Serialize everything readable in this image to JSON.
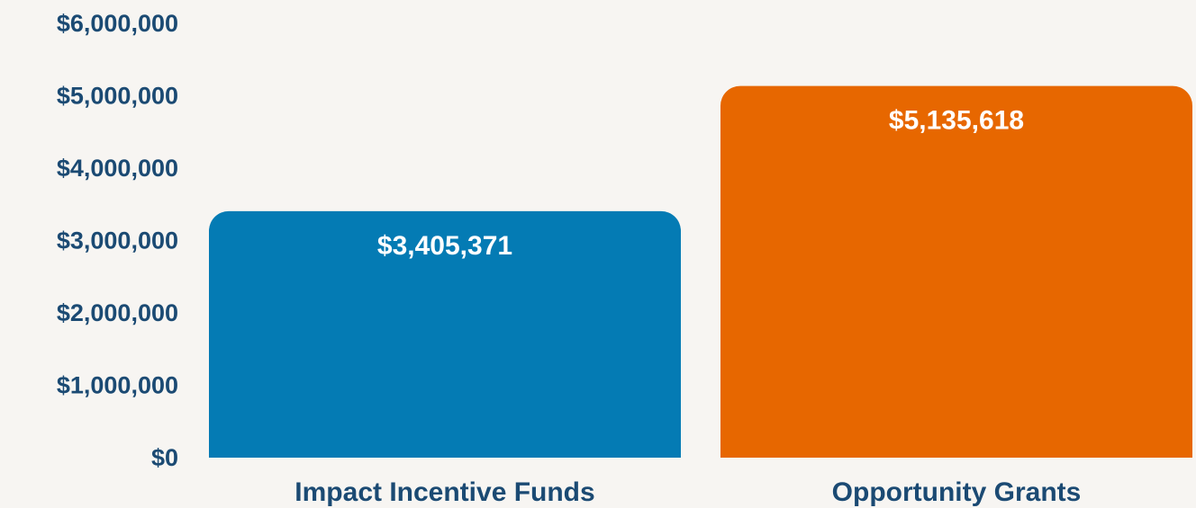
{
  "chart_data": {
    "type": "bar",
    "categories": [
      "Impact Incentive Funds",
      "Opportunity Grants"
    ],
    "values": [
      3405371,
      5135618
    ],
    "value_labels": [
      "$3,405,371",
      "$5,135,618"
    ],
    "colors": [
      "#047bb4",
      "#e76700"
    ],
    "ylim": [
      0,
      6000000
    ],
    "yticks": [
      {
        "value": 0,
        "label": "$0"
      },
      {
        "value": 1000000,
        "label": "$1,000,000"
      },
      {
        "value": 2000000,
        "label": "$2,000,000"
      },
      {
        "value": 3000000,
        "label": "$3,000,000"
      },
      {
        "value": 4000000,
        "label": "$4,000,000"
      },
      {
        "value": 5000000,
        "label": "$5,000,000"
      },
      {
        "value": 6000000,
        "label": "$6,000,000"
      }
    ],
    "grid": false
  }
}
